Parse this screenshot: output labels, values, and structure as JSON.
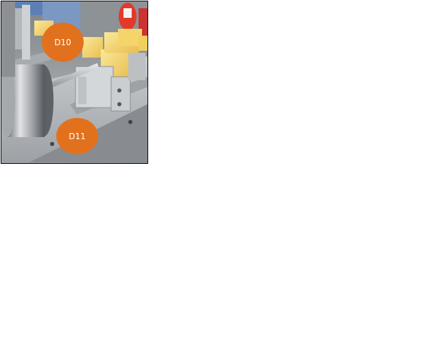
{
  "photo": {
    "subject": "machine-photo",
    "colors": {
      "metal": "#b9bcbf",
      "plastic_block": "#f0d070",
      "background_red": "#e23a2a",
      "callout": "#e2711d",
      "frame": "#000000"
    }
  },
  "callouts": [
    {
      "id": "d10",
      "label": "D10"
    },
    {
      "id": "d11",
      "label": "D11"
    }
  ]
}
